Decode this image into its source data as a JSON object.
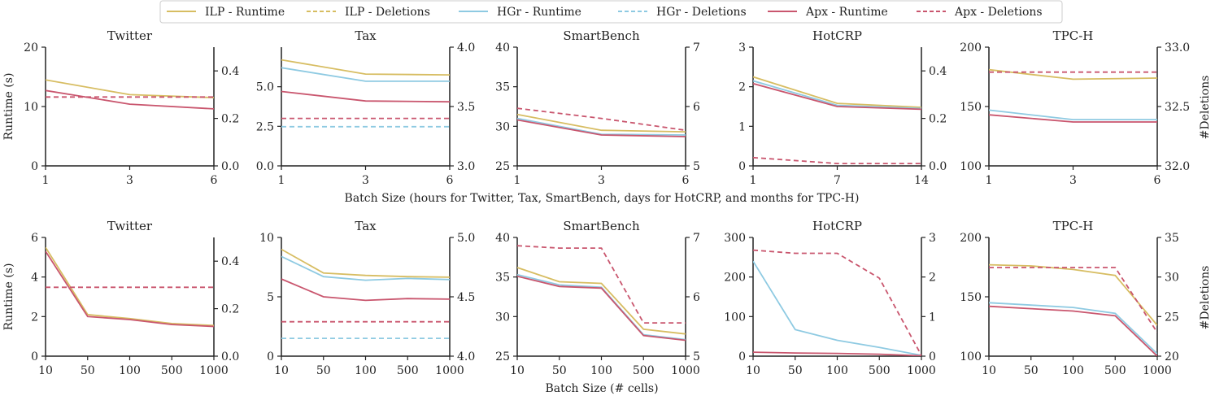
{
  "figure": {
    "legend": [
      {
        "label": "ILP - Runtime",
        "color": "#d7bd62",
        "dash": false
      },
      {
        "label": "ILP - Deletions",
        "color": "#d7bd62",
        "dash": true
      },
      {
        "label": "HGr - Runtime",
        "color": "#8ecae2",
        "dash": false
      },
      {
        "label": "HGr - Deletions",
        "color": "#8ecae2",
        "dash": true
      },
      {
        "label": "Apx - Runtime",
        "color": "#c9566e",
        "dash": false
      },
      {
        "label": "Apx - Deletions",
        "color": "#c9566e",
        "dash": true
      }
    ],
    "row1_xlabel": "Batch Size (hours for Twitter, Tax, SmartBench, days for HotCRP, and months for TPC-H)",
    "row2_xlabel": "Batch Size (# cells)",
    "left_ylabel": "Runtime (s)",
    "right_ylabel": "#Deletions"
  },
  "chart_data": [
    {
      "type": "line",
      "title": "Twitter",
      "row": 0,
      "col": 0,
      "categories": [
        "1",
        "3",
        "6"
      ],
      "ylim": [
        0,
        20
      ],
      "yticks": [
        "0",
        "10",
        "20"
      ],
      "y2lim": [
        0,
        0.5
      ],
      "y2ticks": [
        "0.0",
        "0.2",
        "0.4"
      ],
      "series": [
        {
          "name": "ILP - Runtime",
          "axis": "left",
          "values": [
            14.5,
            12,
            11.5
          ]
        },
        {
          "name": "Apx - Runtime",
          "axis": "left",
          "values": [
            12.7,
            10.4,
            9.6
          ]
        },
        {
          "name": "Apx - Deletions",
          "axis": "right",
          "values": [
            0.29,
            0.29,
            0.29
          ]
        }
      ]
    },
    {
      "type": "line",
      "title": "Tax",
      "row": 0,
      "col": 1,
      "categories": [
        "1",
        "3",
        "6"
      ],
      "ylim": [
        0,
        7.5
      ],
      "yticks": [
        "0.0",
        "2.5",
        "5.0"
      ],
      "y2lim": [
        3,
        4
      ],
      "y2ticks": [
        "3.0",
        "3.5",
        "4.0"
      ],
      "series": [
        {
          "name": "ILP - Runtime",
          "axis": "left",
          "values": [
            6.7,
            5.8,
            5.75
          ]
        },
        {
          "name": "HGr - Runtime",
          "axis": "left",
          "values": [
            6.2,
            5.35,
            5.35
          ]
        },
        {
          "name": "Apx - Runtime",
          "axis": "left",
          "values": [
            4.7,
            4.1,
            4.05
          ]
        },
        {
          "name": "HGr - Deletions",
          "axis": "right",
          "values": [
            3.33,
            3.33,
            3.33
          ]
        },
        {
          "name": "Apx - Deletions",
          "axis": "right",
          "values": [
            3.4,
            3.4,
            3.4
          ]
        }
      ]
    },
    {
      "type": "line",
      "title": "SmartBench",
      "row": 0,
      "col": 2,
      "categories": [
        "1",
        "3",
        "6"
      ],
      "ylim": [
        25,
        40
      ],
      "yticks": [
        "25",
        "30",
        "35",
        "40"
      ],
      "y2lim": [
        5,
        7
      ],
      "y2ticks": [
        "5",
        "6",
        "7"
      ],
      "series": [
        {
          "name": "ILP - Runtime",
          "axis": "left",
          "values": [
            31.5,
            29.5,
            29.3
          ]
        },
        {
          "name": "HGr - Runtime",
          "axis": "left",
          "values": [
            31,
            29,
            28.9
          ]
        },
        {
          "name": "Apx - Runtime",
          "axis": "left",
          "values": [
            30.8,
            28.9,
            28.7
          ]
        },
        {
          "name": "Apx - Deletions",
          "axis": "right",
          "values": [
            5.97,
            5.8,
            5.6
          ]
        }
      ]
    },
    {
      "type": "line",
      "title": "HotCRP",
      "row": 0,
      "col": 3,
      "categories": [
        "1",
        "7",
        "14"
      ],
      "ylim": [
        0,
        3
      ],
      "yticks": [
        "0",
        "1",
        "2",
        "3"
      ],
      "y2lim": [
        0,
        0.5
      ],
      "y2ticks": [
        "0.0",
        "0.2",
        "0.4"
      ],
      "series": [
        {
          "name": "ILP - Runtime",
          "axis": "left",
          "values": [
            2.25,
            1.58,
            1.48
          ]
        },
        {
          "name": "HGr - Runtime",
          "axis": "left",
          "values": [
            2.15,
            1.53,
            1.45
          ]
        },
        {
          "name": "Apx - Runtime",
          "axis": "left",
          "values": [
            2.08,
            1.5,
            1.43
          ]
        },
        {
          "name": "Apx - Deletions",
          "axis": "right",
          "values": [
            0.035,
            0.01,
            0.01
          ]
        }
      ]
    },
    {
      "type": "line",
      "title": "TPC-H",
      "row": 0,
      "col": 4,
      "categories": [
        "1",
        "3",
        "6"
      ],
      "ylim": [
        100,
        200
      ],
      "yticks": [
        "100",
        "150",
        "200"
      ],
      "y2lim": [
        32,
        33
      ],
      "y2ticks": [
        "32.0",
        "32.5",
        "33.0"
      ],
      "series": [
        {
          "name": "ILP - Runtime",
          "axis": "left",
          "values": [
            181,
            173,
            174
          ]
        },
        {
          "name": "HGr - Runtime",
          "axis": "left",
          "values": [
            147,
            139,
            139
          ]
        },
        {
          "name": "Apx - Runtime",
          "axis": "left",
          "values": [
            143,
            137,
            137
          ]
        },
        {
          "name": "Apx - Deletions",
          "axis": "right",
          "values": [
            32.79,
            32.79,
            32.79
          ]
        }
      ]
    },
    {
      "type": "line",
      "title": "Twitter",
      "row": 1,
      "col": 0,
      "categories": [
        "10",
        "50",
        "100",
        "500",
        "1000"
      ],
      "ylim": [
        0,
        6
      ],
      "yticks": [
        "0",
        "2",
        "4",
        "6"
      ],
      "y2lim": [
        0,
        0.5
      ],
      "y2ticks": [
        "0.0",
        "0.2",
        "0.4"
      ],
      "series": [
        {
          "name": "ILP - Runtime",
          "axis": "left",
          "values": [
            5.5,
            2.1,
            1.9,
            1.65,
            1.55
          ]
        },
        {
          "name": "Apx - Runtime",
          "axis": "left",
          "values": [
            5.3,
            2,
            1.85,
            1.6,
            1.5
          ]
        },
        {
          "name": "Apx - Deletions",
          "axis": "right",
          "values": [
            0.29,
            0.29,
            0.29,
            0.29,
            0.29
          ]
        }
      ]
    },
    {
      "type": "line",
      "title": "Tax",
      "row": 1,
      "col": 1,
      "categories": [
        "10",
        "50",
        "100",
        "500",
        "1000"
      ],
      "ylim": [
        0,
        10
      ],
      "yticks": [
        "0",
        "5",
        "10"
      ],
      "y2lim": [
        4,
        5
      ],
      "y2ticks": [
        "4.0",
        "4.5",
        "5.0"
      ],
      "series": [
        {
          "name": "ILP - Runtime",
          "axis": "left",
          "values": [
            9,
            7,
            6.8,
            6.7,
            6.65
          ]
        },
        {
          "name": "HGr - Runtime",
          "axis": "left",
          "values": [
            8.4,
            6.7,
            6.4,
            6.55,
            6.45
          ]
        },
        {
          "name": "Apx - Runtime",
          "axis": "left",
          "values": [
            6.5,
            5,
            4.7,
            4.85,
            4.8
          ]
        },
        {
          "name": "HGr - Deletions",
          "axis": "right",
          "values": [
            4.15,
            4.15,
            4.15,
            4.15,
            4.15
          ]
        },
        {
          "name": "Apx - Deletions",
          "axis": "right",
          "values": [
            4.29,
            4.29,
            4.29,
            4.29,
            4.29
          ]
        }
      ]
    },
    {
      "type": "line",
      "title": "SmartBench",
      "row": 1,
      "col": 2,
      "categories": [
        "10",
        "50",
        "100",
        "500",
        "1000"
      ],
      "ylim": [
        25,
        40
      ],
      "yticks": [
        "25",
        "30",
        "35",
        "40"
      ],
      "y2lim": [
        5,
        7
      ],
      "y2ticks": [
        "5",
        "6",
        "7"
      ],
      "series": [
        {
          "name": "ILP - Runtime",
          "axis": "left",
          "values": [
            36.2,
            34.4,
            34.2,
            28.4,
            27.8
          ]
        },
        {
          "name": "HGr - Runtime",
          "axis": "left",
          "values": [
            35.3,
            34,
            33.7,
            27.7,
            27.1
          ]
        },
        {
          "name": "Apx - Runtime",
          "axis": "left",
          "values": [
            35.1,
            33.8,
            33.6,
            27.6,
            27
          ]
        },
        {
          "name": "Apx - Deletions",
          "axis": "right",
          "values": [
            6.86,
            6.82,
            6.82,
            5.56,
            5.56
          ]
        }
      ]
    },
    {
      "type": "line",
      "title": "HotCRP",
      "row": 1,
      "col": 3,
      "categories": [
        "10",
        "50",
        "100",
        "500",
        "1000"
      ],
      "ylim": [
        0,
        300
      ],
      "yticks": [
        "0",
        "100",
        "200",
        "300"
      ],
      "y2lim": [
        0,
        3
      ],
      "y2ticks": [
        "0",
        "1",
        "2",
        "3"
      ],
      "series": [
        {
          "name": "HGr - Runtime",
          "axis": "left",
          "values": [
            240,
            67,
            40,
            22,
            2
          ]
        },
        {
          "name": "Apx - Runtime",
          "axis": "left",
          "values": [
            10,
            8,
            7,
            5,
            1
          ]
        },
        {
          "name": "Apx - Deletions",
          "axis": "right",
          "values": [
            2.68,
            2.6,
            2.6,
            1.97,
            0.02
          ]
        }
      ]
    },
    {
      "type": "line",
      "title": "TPC-H",
      "row": 1,
      "col": 4,
      "categories": [
        "10",
        "50",
        "100",
        "500",
        "1000"
      ],
      "ylim": [
        100,
        200
      ],
      "yticks": [
        "100",
        "150",
        "200"
      ],
      "y2lim": [
        20,
        35
      ],
      "y2ticks": [
        "20",
        "25",
        "30",
        "35"
      ],
      "series": [
        {
          "name": "ILP - Runtime",
          "axis": "left",
          "values": [
            177,
            176,
            173,
            168,
            126
          ]
        },
        {
          "name": "HGr - Runtime",
          "axis": "left",
          "values": [
            145,
            143,
            141,
            136,
            102
          ]
        },
        {
          "name": "Apx - Runtime",
          "axis": "left",
          "values": [
            142,
            140,
            138,
            134,
            100
          ]
        },
        {
          "name": "Apx - Deletions",
          "axis": "right",
          "values": [
            31.2,
            31.2,
            31.2,
            31.2,
            23
          ]
        }
      ]
    }
  ]
}
